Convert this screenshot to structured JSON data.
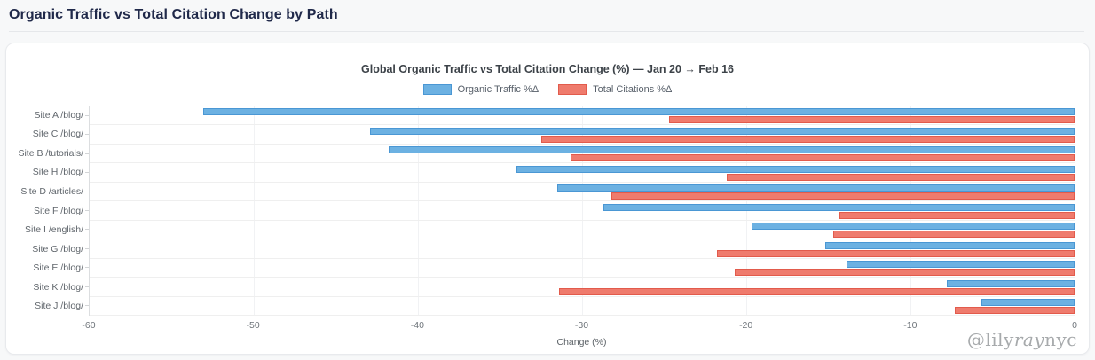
{
  "page": {
    "title": "Organic Traffic vs Total Citation Change by Path"
  },
  "watermark": {
    "prefix": "@lily",
    "italic": "ray",
    "suffix": "nyc"
  },
  "chart_data": {
    "type": "bar",
    "orientation": "horizontal",
    "title": "Global Organic Traffic vs Total Citation Change (%) — Jan 20 → Feb 16",
    "xlabel": "Change (%)",
    "xlim": [
      -60,
      0
    ],
    "xticks": [
      -60,
      -50,
      -40,
      -30,
      -20,
      -10,
      0
    ],
    "grid": true,
    "legend_position": "top",
    "categories": [
      "Site A /blog/",
      "Site C /blog/",
      "Site B /tutorials/",
      "Site H /blog/",
      "Site D /articles/",
      "Site F /blog/",
      "Site I /english/",
      "Site G /blog/",
      "Site E /blog/",
      "Site K /blog/",
      "Site J /blog/"
    ],
    "series": [
      {
        "name": "Organic Traffic %Δ",
        "fill_color": "#6cb1e2",
        "border_color": "#4a97d4",
        "values": [
          -53.1,
          -42.9,
          -41.8,
          -34.0,
          -31.5,
          -28.7,
          -19.7,
          -15.2,
          -13.9,
          -7.8,
          -5.7
        ]
      },
      {
        "name": "Total Citations %Δ",
        "fill_color": "#ef7b6d",
        "border_color": "#e25b4c",
        "values": [
          -24.7,
          -32.5,
          -30.7,
          -21.2,
          -28.2,
          -14.3,
          -14.7,
          -21.8,
          -20.7,
          -31.4,
          -7.3
        ]
      }
    ]
  }
}
